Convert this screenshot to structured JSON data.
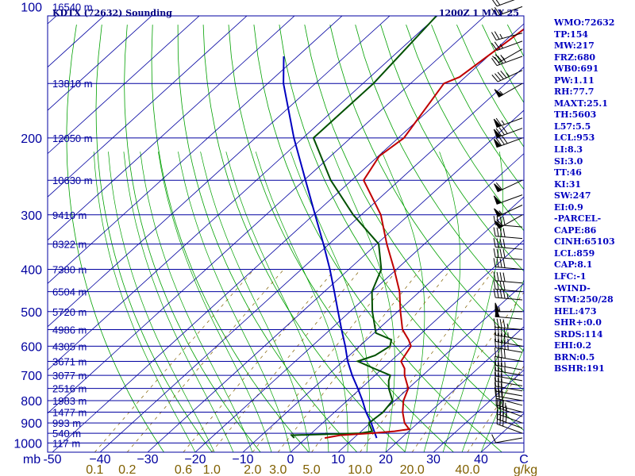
{
  "chart_data": {
    "type": "skew-t",
    "title_left": "KDTX (72632) Sounding",
    "title_right": "1200Z  1 MAY 25",
    "pressure_unit_label": "mb",
    "temperature_unit_label": "C",
    "mixing_ratio_unit_label": "g/kg",
    "pressure_levels": [
      {
        "p": 1000,
        "label": "1000",
        "height": "117 m"
      },
      {
        "p": 950,
        "label": "",
        "height": "540 m"
      },
      {
        "p": 900,
        "label": "900",
        "height": "993 m"
      },
      {
        "p": 850,
        "label": "",
        "height": "1477 m"
      },
      {
        "p": 800,
        "label": "800",
        "height": "1983 m"
      },
      {
        "p": 750,
        "label": "",
        "height": "2516 m"
      },
      {
        "p": 700,
        "label": "700",
        "height": "3077 m"
      },
      {
        "p": 650,
        "label": "",
        "height": "3671 m"
      },
      {
        "p": 600,
        "label": "600",
        "height": "4305 m"
      },
      {
        "p": 550,
        "label": "",
        "height": "4986 m"
      },
      {
        "p": 500,
        "label": "500",
        "height": "5720 m"
      },
      {
        "p": 450,
        "label": "",
        "height": "6504 m"
      },
      {
        "p": 400,
        "label": "400",
        "height": "7380 m"
      },
      {
        "p": 350,
        "label": "",
        "height": "8322 m"
      },
      {
        "p": 300,
        "label": "300",
        "height": "9410 m"
      },
      {
        "p": 250,
        "label": "",
        "height": "10630 m"
      },
      {
        "p": 200,
        "label": "200",
        "height": "12050 m"
      },
      {
        "p": 150,
        "label": "",
        "height": "13810 m"
      },
      {
        "p": 100,
        "label": "100",
        "height": "16540 m"
      }
    ],
    "temperature_ticks": [
      {
        "t": -50,
        "label": "-50"
      },
      {
        "t": -40,
        "label": "−40"
      },
      {
        "t": -30,
        "label": "−30"
      },
      {
        "t": -20,
        "label": "−20"
      },
      {
        "t": -10,
        "label": "−10"
      },
      {
        "t": 0,
        "label": "0"
      },
      {
        "t": 10,
        "label": "10"
      },
      {
        "t": 20,
        "label": "20"
      },
      {
        "t": 30,
        "label": "30"
      },
      {
        "t": 40,
        "label": "40"
      }
    ],
    "mixing_ratio_ticks": [
      {
        "w": 0.1,
        "label": "0.1"
      },
      {
        "w": 0.2,
        "label": "0.2"
      },
      {
        "w": 0.6,
        "label": "0.6"
      },
      {
        "w": 1.0,
        "label": "1.0"
      },
      {
        "w": 2.0,
        "label": "2.0"
      },
      {
        "w": 3.0,
        "label": "3.0"
      },
      {
        "w": 5.0,
        "label": "5.0"
      },
      {
        "w": 10.0,
        "label": "10.0"
      },
      {
        "w": 20.0,
        "label": "20.0"
      },
      {
        "w": 40.0,
        "label": "40.0"
      }
    ],
    "temperature_profile": [
      {
        "p": 974,
        "t": 3.9
      },
      {
        "p": 960,
        "t": 6.5
      },
      {
        "p": 950,
        "t": 12.5
      },
      {
        "p": 940,
        "t": 17.0
      },
      {
        "p": 930,
        "t": 19.6
      },
      {
        "p": 900,
        "t": 17.2
      },
      {
        "p": 850,
        "t": 14.3
      },
      {
        "p": 800,
        "t": 11.8
      },
      {
        "p": 750,
        "t": 10.0
      },
      {
        "p": 700,
        "t": 6.2
      },
      {
        "p": 675,
        "t": 4.6
      },
      {
        "p": 650,
        "t": 2.2
      },
      {
        "p": 600,
        "t": 0.8
      },
      {
        "p": 580,
        "t": -1.2
      },
      {
        "p": 550,
        "t": -4.8
      },
      {
        "p": 500,
        "t": -9.4
      },
      {
        "p": 450,
        "t": -14.2
      },
      {
        "p": 400,
        "t": -20.5
      },
      {
        "p": 350,
        "t": -27.9
      },
      {
        "p": 300,
        "t": -35.9
      },
      {
        "p": 250,
        "t": -47.5
      },
      {
        "p": 220,
        "t": -49.8
      },
      {
        "p": 200,
        "t": -48.8
      },
      {
        "p": 150,
        "t": -53.0
      },
      {
        "p": 145,
        "t": -51.2
      },
      {
        "p": 100,
        "t": -47.6
      }
    ],
    "dewpoint_profile": [
      {
        "p": 974,
        "t": -2.5
      },
      {
        "p": 960,
        "t": -3.7
      },
      {
        "p": 950,
        "t": 10.2
      },
      {
        "p": 940,
        "t": 12.3
      },
      {
        "p": 900,
        "t": 9.7
      },
      {
        "p": 850,
        "t": 10.2
      },
      {
        "p": 800,
        "t": 9.5
      },
      {
        "p": 750,
        "t": 5.9
      },
      {
        "p": 720,
        "t": 4.1
      },
      {
        "p": 700,
        "t": 3.2
      },
      {
        "p": 675,
        "t": -1.8
      },
      {
        "p": 650,
        "t": -6.9
      },
      {
        "p": 630,
        "t": -4.6
      },
      {
        "p": 600,
        "t": -3.6
      },
      {
        "p": 580,
        "t": -4.8
      },
      {
        "p": 560,
        "t": -9.6
      },
      {
        "p": 500,
        "t": -15.3
      },
      {
        "p": 450,
        "t": -20.0
      },
      {
        "p": 400,
        "t": -23.2
      },
      {
        "p": 350,
        "t": -29.6
      },
      {
        "p": 300,
        "t": -41.7
      },
      {
        "p": 250,
        "t": -54.4
      },
      {
        "p": 200,
        "t": -67.8
      },
      {
        "p": 150,
        "t": -67.8
      },
      {
        "p": 100,
        "t": -70.5
      }
    ],
    "parcel_profile": [
      {
        "p": 974,
        "t": 14.8
      },
      {
        "p": 900,
        "t": 10.2
      },
      {
        "p": 850,
        "t": 6.6
      },
      {
        "p": 800,
        "t": 3.2
      },
      {
        "p": 750,
        "t": -0.6
      },
      {
        "p": 700,
        "t": -4.8
      },
      {
        "p": 650,
        "t": -9.0
      },
      {
        "p": 600,
        "t": -13.0
      },
      {
        "p": 550,
        "t": -17.6
      },
      {
        "p": 500,
        "t": -22.5
      },
      {
        "p": 450,
        "t": -27.9
      },
      {
        "p": 400,
        "t": -34.0
      },
      {
        "p": 350,
        "t": -41.2
      },
      {
        "p": 300,
        "t": -49.7
      },
      {
        "p": 250,
        "t": -59.7
      },
      {
        "p": 200,
        "t": -71.9
      },
      {
        "p": 150,
        "t": -86.7
      },
      {
        "p": 130,
        "t": -92.9
      }
    ],
    "wind_barbs": [
      {
        "p": 974,
        "dir": 260,
        "spd": 10
      },
      {
        "p": 950,
        "dir": 290,
        "spd": 25
      },
      {
        "p": 925,
        "dir": 290,
        "spd": 40
      },
      {
        "p": 900,
        "dir": 290,
        "spd": 40
      },
      {
        "p": 870,
        "dir": 290,
        "spd": 35
      },
      {
        "p": 850,
        "dir": 285,
        "spd": 35
      },
      {
        "p": 820,
        "dir": 285,
        "spd": 30
      },
      {
        "p": 800,
        "dir": 280,
        "spd": 30
      },
      {
        "p": 780,
        "dir": 280,
        "spd": 30
      },
      {
        "p": 760,
        "dir": 280,
        "spd": 30
      },
      {
        "p": 740,
        "dir": 280,
        "spd": 30
      },
      {
        "p": 720,
        "dir": 280,
        "spd": 30
      },
      {
        "p": 700,
        "dir": 280,
        "spd": 35
      },
      {
        "p": 680,
        "dir": 280,
        "spd": 35
      },
      {
        "p": 650,
        "dir": 280,
        "spd": 40
      },
      {
        "p": 620,
        "dir": 280,
        "spd": 45
      },
      {
        "p": 600,
        "dir": 280,
        "spd": 45
      },
      {
        "p": 580,
        "dir": 280,
        "spd": 45
      },
      {
        "p": 550,
        "dir": 275,
        "spd": 45
      },
      {
        "p": 520,
        "dir": 275,
        "spd": 50
      },
      {
        "p": 500,
        "dir": 270,
        "spd": 55
      },
      {
        "p": 470,
        "dir": 275,
        "spd": 45
      },
      {
        "p": 450,
        "dir": 275,
        "spd": 40
      },
      {
        "p": 430,
        "dir": 275,
        "spd": 40
      },
      {
        "p": 400,
        "dir": 275,
        "spd": 40
      },
      {
        "p": 380,
        "dir": 275,
        "spd": 40
      },
      {
        "p": 360,
        "dir": 275,
        "spd": 40
      },
      {
        "p": 340,
        "dir": 275,
        "spd": 40
      },
      {
        "p": 320,
        "dir": 275,
        "spd": 40
      },
      {
        "p": 300,
        "dir": 240,
        "spd": 60
      },
      {
        "p": 285,
        "dir": 245,
        "spd": 55
      },
      {
        "p": 270,
        "dir": 250,
        "spd": 50
      },
      {
        "p": 250,
        "dir": 245,
        "spd": 60
      },
      {
        "p": 200,
        "dir": 250,
        "spd": 80
      },
      {
        "p": 190,
        "dir": 250,
        "spd": 80
      },
      {
        "p": 180,
        "dir": 250,
        "spd": 65
      },
      {
        "p": 150,
        "dir": 240,
        "spd": 55
      },
      {
        "p": 140,
        "dir": 245,
        "spd": 45
      },
      {
        "p": 130,
        "dir": 250,
        "spd": 40
      },
      {
        "p": 125,
        "dir": 240,
        "spd": 25
      },
      {
        "p": 120,
        "dir": 250,
        "spd": 25
      },
      {
        "p": 115,
        "dir": 255,
        "spd": 25
      },
      {
        "p": 100,
        "dir": 250,
        "spd": 25
      },
      {
        "p": 95,
        "dir": 250,
        "spd": 20
      }
    ],
    "colors": {
      "isobar": "#0000a0",
      "isotherm": "#0000a0",
      "dry_adiabat": "#00a000",
      "moist_adiabat": "#00a000",
      "mixing_ratio": "#806000",
      "temperature": "#c00000",
      "dewpoint": "#005000",
      "parcel": "#0000c0",
      "title": "#000080",
      "side_text": "#0000c0"
    }
  },
  "indices": [
    "WMO:72632",
    "TP:154",
    "MW:217",
    "FRZ:680",
    "WB0:691",
    "PW:1.11",
    "RH:77.7",
    "MAXT:25.1",
    "TH:5603",
    "L57:5.5",
    "LCL:953",
    "LI:8.3",
    "SI:3.0",
    "TT:46",
    "KI:31",
    "SW:247",
    "EI:0.9",
    "-PARCEL-",
    "CAPE:86",
    "CINH:65103",
    "LCL:859",
    "CAP:8.1",
    "LFC:-1",
    "-WIND-",
    "STM:250/28",
    "HEL:473",
    "SHR+:0.0",
    "SRDS:114",
    "EHI:0.2",
    "BRN:0.5",
    "BSHR:191"
  ]
}
